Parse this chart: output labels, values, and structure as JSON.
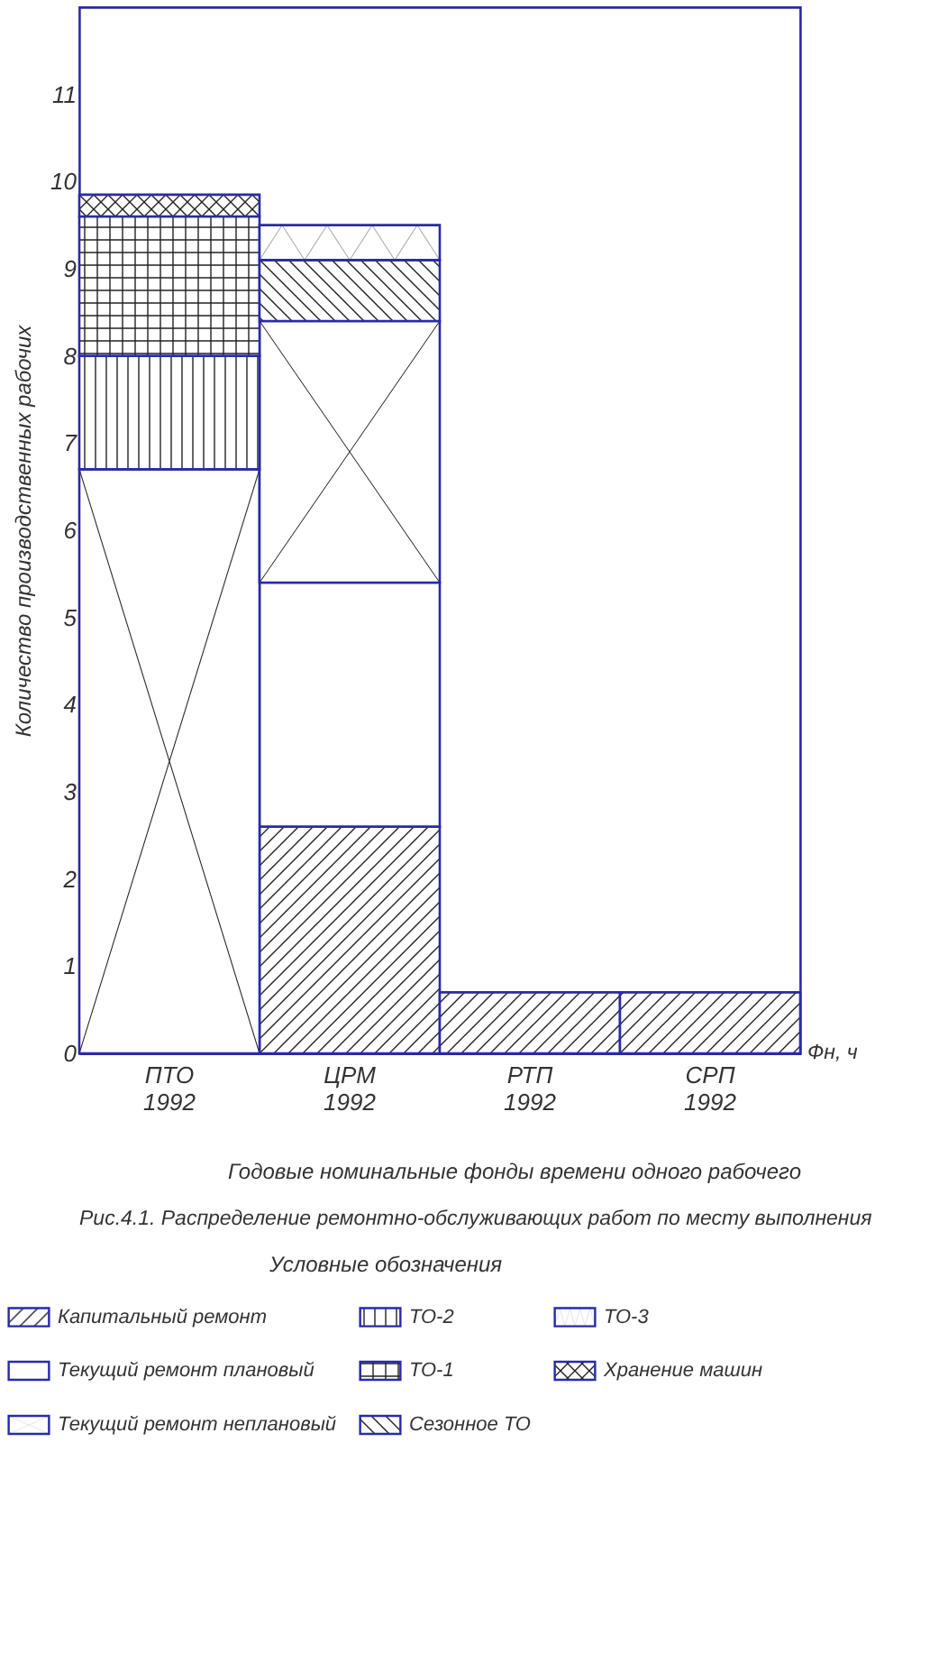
{
  "chart_data": {
    "type": "bar",
    "stacked": true,
    "ylabel": "Количество производственных рабочих",
    "xlabel": "Годовые номинальные фонды времени одного рабочего",
    "legend_title": "Условные обозначения",
    "legend": "bottom",
    "categories": [
      "ПТО\n1992",
      "ЦРМ\n1992",
      "РТП\n1992",
      "СРП\n1992"
    ],
    "ylim": [
      0,
      12
    ],
    "yticks": [
      0,
      1,
      2,
      3,
      4,
      5,
      6,
      7,
      8,
      9,
      10,
      11
    ],
    "series": [
      {
        "name": "Капитальный ремонт",
        "color": "#2a2aa8",
        "values": [
          null,
          2.6,
          0.7,
          0.7
        ]
      },
      {
        "name": "Текущий ремонт плановый",
        "color": "#2a2aa8",
        "values": [
          null,
          2.8,
          null,
          null
        ]
      },
      {
        "name": "Текущий ремонт неплановый",
        "color": "#2a2aa8",
        "values": [
          6.7,
          3.0,
          null,
          null
        ]
      },
      {
        "name": "ТО-2",
        "color": "#2a2aa8",
        "values": [
          1.3,
          null,
          null,
          null
        ]
      },
      {
        "name": "ТО-1",
        "color": "#2a2aa8",
        "values": [
          1.6,
          null,
          null,
          null
        ]
      },
      {
        "name": "Сезонное ТО",
        "color": "#2a2aa8",
        "values": [
          null,
          0.7,
          null,
          null
        ]
      },
      {
        "name": "ТО-3",
        "color": "#2a2aa8",
        "values": [
          null,
          0.4,
          null,
          null
        ]
      },
      {
        "name": "Хранение машин",
        "color": "#2a2aa8",
        "values": [
          0.25,
          null,
          null,
          null
        ]
      }
    ],
    "annotations": [
      "Фн, ч",
      "Рис.4.1. Распределение ремонтно-обслуживающих работ по месту выполнения"
    ]
  }
}
